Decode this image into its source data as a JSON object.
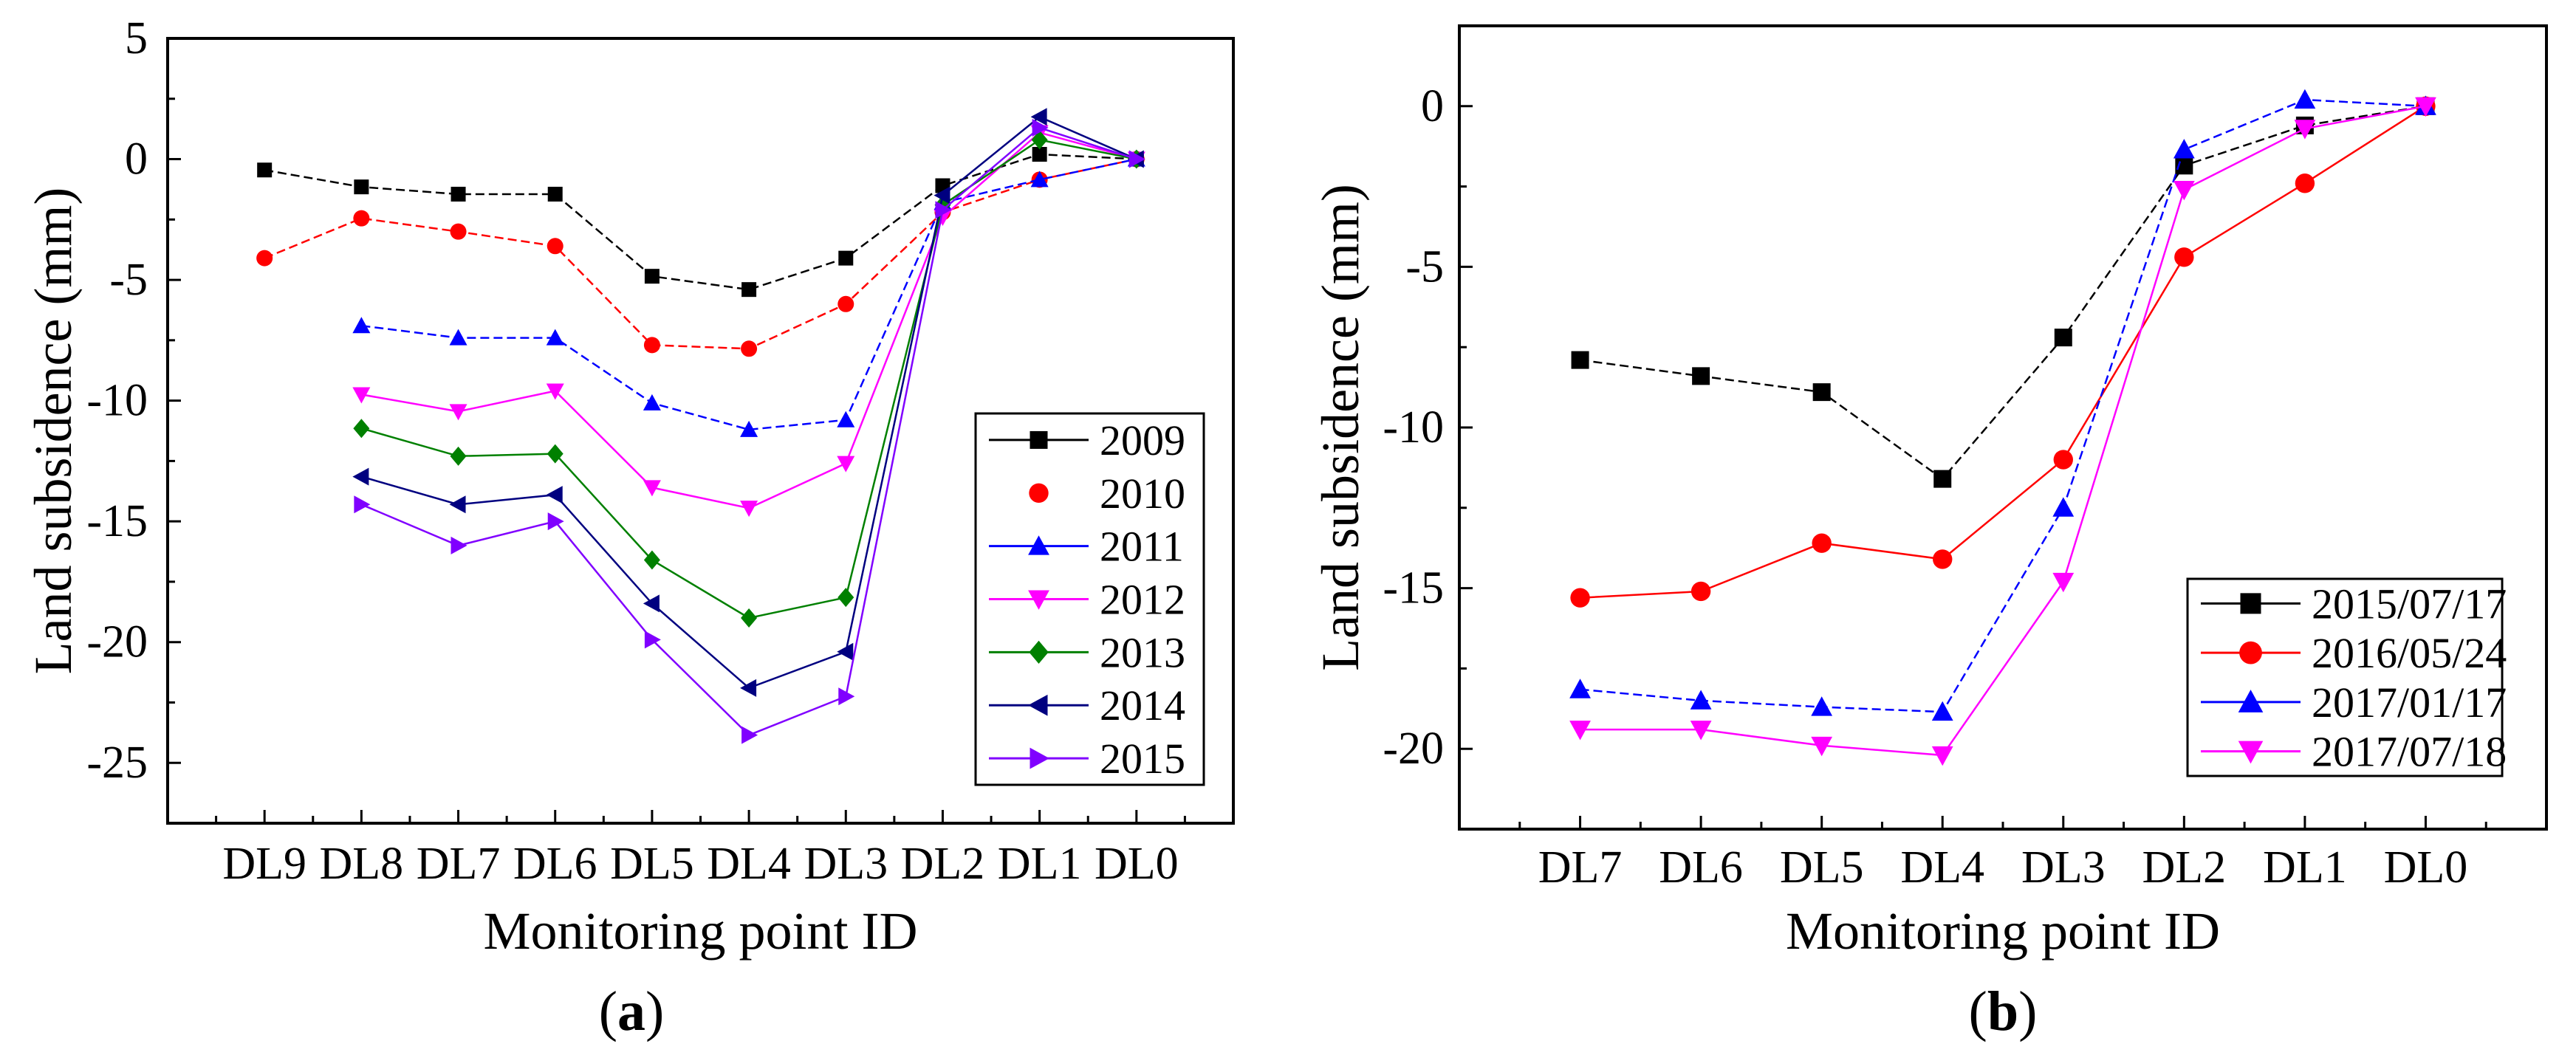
{
  "chart_data": [
    {
      "type": "line",
      "panel_label": "(a)",
      "panel_letter": "a",
      "xlabel": "Monitoring point ID",
      "ylabel": "Land subsidence (mm)",
      "categories": [
        "DL9",
        "DL8",
        "DL7",
        "DL6",
        "DL5",
        "DL4",
        "DL3",
        "DL2",
        "DL1",
        "DL0"
      ],
      "ylim": [
        -27.5,
        5
      ],
      "yticks": [
        5,
        0,
        -5,
        -10,
        -15,
        -20,
        -25
      ],
      "ytick_labels": [
        "5",
        "0",
        "-5",
        "-10",
        "-15",
        "-20",
        "-25"
      ],
      "grid": false,
      "legend_position": "lower-right",
      "series": [
        {
          "name": "2009",
          "color": "#000000",
          "marker": "square",
          "dash": true,
          "values": [
            -0.45,
            -1.15,
            -1.45,
            -1.45,
            -4.85,
            -5.4,
            -4.1,
            -1.1,
            0.2,
            0
          ]
        },
        {
          "name": "2010",
          "color": "#ff0000",
          "marker": "circle",
          "dash": true,
          "values": [
            -4.1,
            -2.45,
            -3.0,
            -3.6,
            -7.7,
            -7.85,
            -6.0,
            -2.2,
            -0.85,
            0
          ]
        },
        {
          "name": "2011",
          "color": "#0000ff",
          "marker": "triangle-up",
          "dash": true,
          "values": [
            null,
            -6.9,
            -7.4,
            -7.4,
            -10.1,
            -11.2,
            -10.8,
            -1.8,
            -0.85,
            0
          ]
        },
        {
          "name": "2012",
          "color": "#ff00ff",
          "marker": "triangle-down",
          "dash": false,
          "values": [
            null,
            -9.75,
            -10.45,
            -9.6,
            -13.6,
            -14.45,
            -12.6,
            -2.4,
            1.1,
            0
          ]
        },
        {
          "name": "2013",
          "color": "#008000",
          "marker": "diamond",
          "dash": false,
          "values": [
            null,
            -11.15,
            -12.3,
            -12.2,
            -16.6,
            -19.0,
            -18.15,
            -1.9,
            0.8,
            0
          ]
        },
        {
          "name": "2014",
          "color": "#000080",
          "marker": "triangle-left",
          "dash": false,
          "values": [
            null,
            -13.15,
            -14.3,
            -13.9,
            -18.4,
            -21.9,
            -20.4,
            -1.5,
            1.75,
            0
          ]
        },
        {
          "name": "2015",
          "color": "#8000ff",
          "marker": "triangle-right",
          "dash": false,
          "values": [
            null,
            -14.3,
            -16.0,
            -15.0,
            -19.9,
            -23.85,
            -22.25,
            -2.1,
            1.3,
            0
          ]
        }
      ]
    },
    {
      "type": "line",
      "panel_label": "(b)",
      "panel_letter": "b",
      "xlabel": "Monitoring point ID",
      "ylabel": "Land subsidence (mm)",
      "categories": [
        "DL7",
        "DL6",
        "DL5",
        "DL4",
        "DL3",
        "DL2",
        "DL1",
        "DL0"
      ],
      "ylim": [
        -22.5,
        2.5
      ],
      "yticks": [
        0,
        -5,
        -10,
        -15,
        -20
      ],
      "ytick_labels": [
        "0",
        "-5",
        "-10",
        "-15",
        "-20"
      ],
      "grid": false,
      "legend_position": "lower-right",
      "series": [
        {
          "name": "2015/07/17",
          "color": "#000000",
          "marker": "square",
          "dash": true,
          "values": [
            -7.9,
            -8.4,
            -8.9,
            -11.6,
            -7.2,
            -1.85,
            -0.6,
            0
          ]
        },
        {
          "name": "2016/05/24",
          "color": "#ff0000",
          "marker": "circle",
          "dash": false,
          "values": [
            -15.3,
            -15.1,
            -13.6,
            -14.1,
            -11.0,
            -4.7,
            -2.4,
            0
          ]
        },
        {
          "name": "2017/01/17",
          "color": "#0000ff",
          "marker": "triangle-up",
          "dash": true,
          "values": [
            -18.15,
            -18.5,
            -18.7,
            -18.85,
            -12.5,
            -1.35,
            0.2,
            0
          ]
        },
        {
          "name": "2017/07/18",
          "color": "#ff00ff",
          "marker": "triangle-down",
          "dash": false,
          "values": [
            -19.4,
            -19.4,
            -19.9,
            -20.2,
            -14.8,
            -2.6,
            -0.7,
            0
          ]
        }
      ]
    }
  ]
}
